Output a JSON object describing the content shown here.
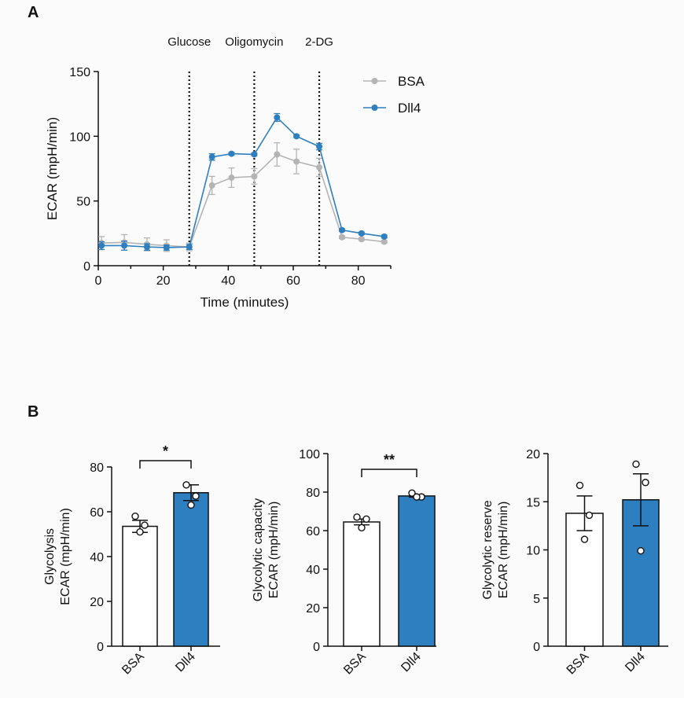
{
  "colors": {
    "bsa": "#b4b4b4",
    "dll4": "#2e7fc0",
    "axis": "#111111"
  },
  "panel_labels": {
    "a": "A",
    "b": "B"
  },
  "chart_data": [
    {
      "type": "line",
      "title": "",
      "xlabel": "Time (minutes)",
      "ylabel": "ECAR (mpH/min)",
      "xlim": [
        0,
        90
      ],
      "ylim": [
        0,
        150
      ],
      "xticks": [
        "0",
        "20",
        "40",
        "60",
        "80"
      ],
      "yticks": [
        "0",
        "50",
        "100",
        "150"
      ],
      "legend": {
        "position": "top-right",
        "entries": [
          "BSA",
          "Dll4"
        ]
      },
      "annotations": [
        {
          "label": "Glucose",
          "x": 28
        },
        {
          "label": "Oligomycin",
          "x": 48
        },
        {
          "label": "2-DG",
          "x": 68
        }
      ],
      "x": [
        1,
        8,
        15,
        21,
        28,
        35,
        41,
        48,
        55,
        61,
        68,
        75,
        81,
        88
      ],
      "series": [
        {
          "name": "BSA",
          "values": [
            17.5,
            18,
            16.5,
            15.5,
            14.5,
            62,
            68,
            69,
            86,
            80.5,
            76,
            22,
            20.5,
            18.5
          ],
          "errors": [
            5,
            6,
            5,
            4.5,
            3,
            7,
            7.5,
            6,
            9,
            9.5,
            7,
            1,
            1,
            1
          ]
        },
        {
          "name": "Dll4",
          "values": [
            15.5,
            15.5,
            14.5,
            14,
            14.5,
            84,
            86.5,
            86,
            114.5,
            100,
            92,
            27.5,
            25,
            22.5
          ],
          "errors": [
            3,
            3.5,
            2.5,
            2,
            2,
            2.5,
            1,
            1,
            3,
            1,
            2.5,
            1,
            1,
            1
          ]
        }
      ]
    },
    {
      "type": "bar",
      "ylabel_lines": [
        "Glycolysis",
        "ECAR (mpH/min)"
      ],
      "categories": [
        "BSA",
        "Dll4"
      ],
      "values": [
        53.5,
        68.5
      ],
      "errors": [
        2.7,
        3.5
      ],
      "points": [
        [
          58,
          54,
          51
        ],
        [
          72,
          67,
          63
        ]
      ],
      "ylim": [
        0,
        80
      ],
      "yticks": [
        "0",
        "20",
        "40",
        "60",
        "80"
      ],
      "significance": "*"
    },
    {
      "type": "bar",
      "ylabel_lines": [
        "Glycolytic capacity",
        "ECAR (mpH/min)"
      ],
      "categories": [
        "BSA",
        "Dll4"
      ],
      "values": [
        64.5,
        78
      ],
      "errors": [
        1.5,
        0.6
      ],
      "points": [
        [
          67,
          66,
          61.5
        ],
        [
          79.5,
          77.5,
          77.5
        ]
      ],
      "ylim": [
        0,
        100
      ],
      "yticks": [
        "0",
        "20",
        "40",
        "60",
        "80",
        "100"
      ],
      "significance": "**"
    },
    {
      "type": "bar",
      "ylabel_lines": [
        "Glycolytic reserve",
        "ECAR (mpH/min)"
      ],
      "categories": [
        "BSA",
        "Dll4"
      ],
      "values": [
        13.8,
        15.2
      ],
      "errors": [
        1.8,
        2.7
      ],
      "points": [
        [
          16.7,
          13.6,
          11.1
        ],
        [
          18.9,
          17,
          9.9
        ]
      ],
      "ylim": [
        0,
        20
      ],
      "yticks": [
        "0",
        "5",
        "10",
        "15",
        "20"
      ],
      "significance": ""
    }
  ]
}
